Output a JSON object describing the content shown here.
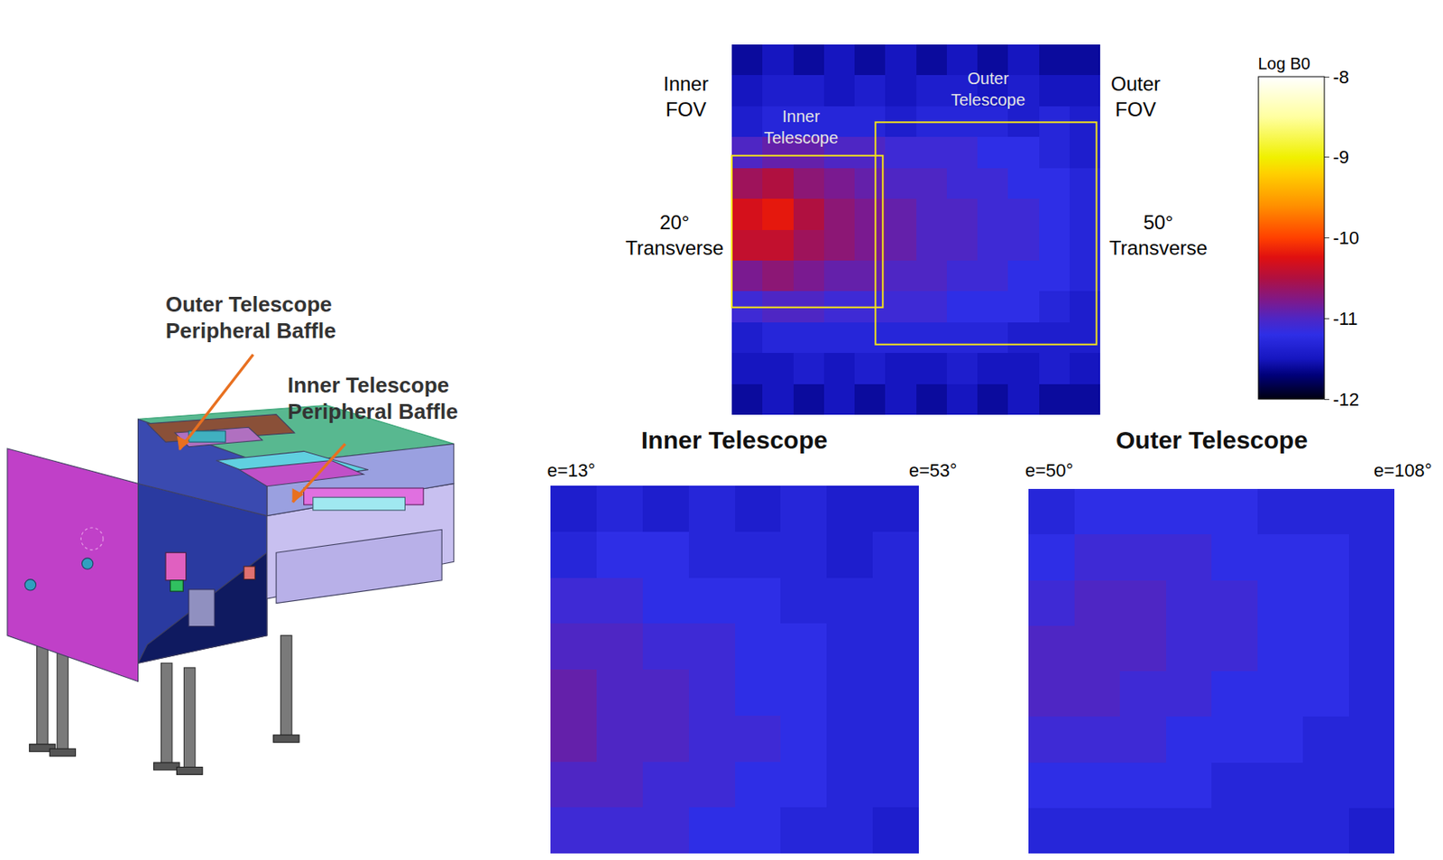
{
  "diagram": {
    "labels": [
      {
        "lines": [
          "Outer Telescope",
          "Peripheral Baffle"
        ]
      },
      {
        "lines": [
          "Inner Telescope",
          "Peripheral Baffle"
        ]
      }
    ]
  },
  "chart_data": [
    {
      "type": "heatmap",
      "left_labels": [
        "Inner FOV",
        "20° Transverse"
      ],
      "right_labels": [
        "Outer FOV",
        "50° Transverse"
      ],
      "box_labels": [
        "Inner Telescope",
        "Outer Telescope"
      ],
      "tick_labels": false,
      "colorbar": {
        "title": "Log B0",
        "range": [
          -12,
          -8
        ],
        "ticks": [
          -8,
          -9,
          -10,
          -11,
          -12
        ]
      },
      "z": [
        [
          -11.6,
          -11.5,
          -11.6,
          -11.5,
          -11.6,
          -11.5,
          -11.6,
          -11.5,
          -11.6,
          -11.5,
          -11.6,
          -11.6
        ],
        [
          -11.5,
          -11.4,
          -11.4,
          -11.5,
          -11.4,
          -11.5,
          -11.4,
          -11.4,
          -11.5,
          -11.4,
          -11.5,
          -11.5
        ],
        [
          -11.4,
          -11.3,
          -11.3,
          -11.3,
          -11.3,
          -11.4,
          -11.3,
          -11.3,
          -11.3,
          -11.4,
          -11.3,
          -11.4
        ],
        [
          -11.0,
          -10.9,
          -10.9,
          -11.0,
          -11.0,
          -11.1,
          -11.1,
          -11.1,
          -11.2,
          -11.2,
          -11.3,
          -11.4
        ],
        [
          -10.6,
          -10.5,
          -10.7,
          -10.8,
          -10.9,
          -11.0,
          -11.0,
          -11.1,
          -11.1,
          -11.2,
          -11.2,
          -11.3
        ],
        [
          -10.3,
          -10.2,
          -10.5,
          -10.7,
          -10.8,
          -10.9,
          -11.0,
          -11.0,
          -11.1,
          -11.1,
          -11.2,
          -11.3
        ],
        [
          -10.4,
          -10.4,
          -10.6,
          -10.7,
          -10.8,
          -10.9,
          -11.0,
          -11.0,
          -11.1,
          -11.1,
          -11.2,
          -11.3
        ],
        [
          -10.8,
          -10.7,
          -10.8,
          -10.9,
          -10.9,
          -11.0,
          -11.0,
          -11.1,
          -11.1,
          -11.2,
          -11.2,
          -11.3
        ],
        [
          -11.1,
          -11.0,
          -11.0,
          -11.1,
          -11.1,
          -11.1,
          -11.1,
          -11.2,
          -11.2,
          -11.2,
          -11.3,
          -11.4
        ],
        [
          -11.4,
          -11.3,
          -11.3,
          -11.3,
          -11.3,
          -11.3,
          -11.3,
          -11.3,
          -11.3,
          -11.4,
          -11.4,
          -11.4
        ],
        [
          -11.5,
          -11.5,
          -11.4,
          -11.5,
          -11.4,
          -11.5,
          -11.5,
          -11.4,
          -11.5,
          -11.5,
          -11.4,
          -11.5
        ],
        [
          -11.6,
          -11.5,
          -11.6,
          -11.5,
          -11.6,
          -11.5,
          -11.6,
          -11.5,
          -11.6,
          -11.5,
          -11.6,
          -11.6
        ]
      ]
    },
    {
      "type": "heatmap",
      "title": "Inner Telescope",
      "edge_labels": [
        "e=13°",
        "e=53°"
      ],
      "tick_labels": false,
      "z": [
        [
          -11.4,
          -11.3,
          -11.4,
          -11.3,
          -11.4,
          -11.3,
          -11.4,
          -11.4
        ],
        [
          -11.3,
          -11.2,
          -11.2,
          -11.3,
          -11.3,
          -11.3,
          -11.4,
          -11.3
        ],
        [
          -11.1,
          -11.1,
          -11.2,
          -11.2,
          -11.2,
          -11.3,
          -11.3,
          -11.3
        ],
        [
          -11.0,
          -11.0,
          -11.1,
          -11.1,
          -11.2,
          -11.2,
          -11.3,
          -11.3
        ],
        [
          -10.9,
          -11.0,
          -11.0,
          -11.1,
          -11.2,
          -11.2,
          -11.3,
          -11.3
        ],
        [
          -10.9,
          -11.0,
          -11.0,
          -11.1,
          -11.1,
          -11.2,
          -11.3,
          -11.3
        ],
        [
          -11.0,
          -11.0,
          -11.1,
          -11.1,
          -11.2,
          -11.2,
          -11.3,
          -11.3
        ],
        [
          -11.1,
          -11.1,
          -11.1,
          -11.2,
          -11.2,
          -11.3,
          -11.3,
          -11.4
        ]
      ]
    },
    {
      "type": "heatmap",
      "title": "Outer Telescope",
      "edge_labels": [
        "e=50°",
        "e=108°"
      ],
      "tick_labels": false,
      "z": [
        [
          -11.3,
          -11.2,
          -11.2,
          -11.2,
          -11.2,
          -11.3,
          -11.3,
          -11.3
        ],
        [
          -11.2,
          -11.1,
          -11.1,
          -11.1,
          -11.2,
          -11.2,
          -11.2,
          -11.3
        ],
        [
          -11.1,
          -11.0,
          -11.0,
          -11.1,
          -11.1,
          -11.2,
          -11.2,
          -11.3
        ],
        [
          -11.0,
          -11.0,
          -11.0,
          -11.1,
          -11.1,
          -11.2,
          -11.2,
          -11.3
        ],
        [
          -11.0,
          -11.0,
          -11.1,
          -11.1,
          -11.2,
          -11.2,
          -11.2,
          -11.3
        ],
        [
          -11.1,
          -11.1,
          -11.1,
          -11.2,
          -11.2,
          -11.2,
          -11.3,
          -11.3
        ],
        [
          -11.2,
          -11.2,
          -11.2,
          -11.2,
          -11.3,
          -11.3,
          -11.3,
          -11.3
        ],
        [
          -11.3,
          -11.3,
          -11.3,
          -11.3,
          -11.3,
          -11.3,
          -11.3,
          -11.4
        ]
      ]
    }
  ]
}
